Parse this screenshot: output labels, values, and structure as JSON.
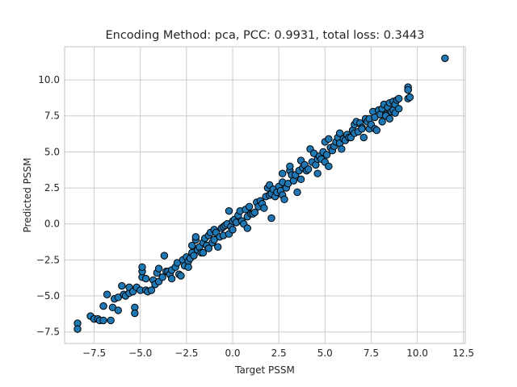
{
  "chart_data": {
    "type": "scatter",
    "title": "Encoding Method: pca, PCC: 0.9931, total loss: 0.3443",
    "xlabel": "Target PSSM",
    "ylabel": "Predicted PSSM",
    "xlim": [
      -9.1,
      12.6
    ],
    "ylim": [
      -8.3,
      12.3
    ],
    "xticks": [
      -7.5,
      -5.0,
      -2.5,
      0.0,
      2.5,
      5.0,
      7.5,
      10.0,
      12.5
    ],
    "xtick_labels": [
      "−7.5",
      "−5.0",
      "−2.5",
      "0.0",
      "2.5",
      "5.0",
      "7.5",
      "10.0",
      "12.5"
    ],
    "yticks": [
      -7.5,
      -5.0,
      -2.5,
      0.0,
      2.5,
      5.0,
      7.5,
      10.0
    ],
    "ytick_labels": [
      "−7.5",
      "−5.0",
      "−2.5",
      "0.0",
      "2.5",
      "5.0",
      "7.5",
      "10.0"
    ],
    "grid": true,
    "colors": {
      "marker_fill": "#1f77b4",
      "marker_edge": "#000000",
      "grid": "#cccccc"
    },
    "series": [
      {
        "points": [
          [
            -8.4,
            -6.9
          ],
          [
            -8.4,
            -7.3
          ],
          [
            -7.7,
            -6.4
          ],
          [
            -7.5,
            -6.6
          ],
          [
            -7.3,
            -6.6
          ],
          [
            -7.2,
            -6.7
          ],
          [
            -7.0,
            -6.7
          ],
          [
            -7.0,
            -5.7
          ],
          [
            -6.8,
            -4.9
          ],
          [
            -6.6,
            -6.7
          ],
          [
            -6.5,
            -5.8
          ],
          [
            -6.4,
            -5.2
          ],
          [
            -6.2,
            -5.1
          ],
          [
            -6.2,
            -6.0
          ],
          [
            -6.0,
            -4.3
          ],
          [
            -5.9,
            -4.9
          ],
          [
            -5.8,
            -5.0
          ],
          [
            -5.6,
            -4.8
          ],
          [
            -5.6,
            -4.4
          ],
          [
            -5.4,
            -4.7
          ],
          [
            -5.3,
            -5.8
          ],
          [
            -5.3,
            -6.2
          ],
          [
            -5.2,
            -4.4
          ],
          [
            -5.0,
            -4.6
          ],
          [
            -4.9,
            -3.7
          ],
          [
            -4.9,
            -3.3
          ],
          [
            -4.9,
            -3.0
          ],
          [
            -4.7,
            -4.6
          ],
          [
            -4.7,
            -3.8
          ],
          [
            -4.6,
            -4.7
          ],
          [
            -4.4,
            -4.6
          ],
          [
            -4.3,
            -3.9
          ],
          [
            -4.2,
            -4.2
          ],
          [
            -4.1,
            -3.4
          ],
          [
            -4.0,
            -3.1
          ],
          [
            -4.0,
            -4.0
          ],
          [
            -3.8,
            -3.7
          ],
          [
            -3.7,
            -2.2
          ],
          [
            -3.6,
            -3.3
          ],
          [
            -3.5,
            -3.3
          ],
          [
            -3.4,
            -3.5
          ],
          [
            -3.3,
            -3.2
          ],
          [
            -3.3,
            -3.8
          ],
          [
            -3.1,
            -3.0
          ],
          [
            -3.0,
            -2.7
          ],
          [
            -2.9,
            -3.5
          ],
          [
            -2.8,
            -3.6
          ],
          [
            -2.7,
            -2.5
          ],
          [
            -2.6,
            -2.9
          ],
          [
            -2.5,
            -2.3
          ],
          [
            -2.4,
            -2.6
          ],
          [
            -2.4,
            -3.0
          ],
          [
            -2.3,
            -2.4
          ],
          [
            -2.2,
            -2.0
          ],
          [
            -2.2,
            -1.5
          ],
          [
            -2.1,
            -2.2
          ],
          [
            -2.0,
            -1.1
          ],
          [
            -2.0,
            -0.9
          ],
          [
            -1.9,
            -1.8
          ],
          [
            -1.8,
            -1.6
          ],
          [
            -1.7,
            -2.0
          ],
          [
            -1.6,
            -1.3
          ],
          [
            -1.6,
            -2.0
          ],
          [
            -1.5,
            -1.0
          ],
          [
            -1.4,
            -1.5
          ],
          [
            -1.3,
            -0.8
          ],
          [
            -1.3,
            -1.7
          ],
          [
            -1.2,
            -0.6
          ],
          [
            -1.1,
            -1.3
          ],
          [
            -1.0,
            -1.1
          ],
          [
            -1.0,
            -0.4
          ],
          [
            -0.9,
            -0.6
          ],
          [
            -0.8,
            -1.6
          ],
          [
            -0.7,
            -0.9
          ],
          [
            -0.6,
            -0.3
          ],
          [
            -0.5,
            -0.2
          ],
          [
            -0.5,
            -0.8
          ],
          [
            -0.4,
            -0.1
          ],
          [
            -0.3,
            0.0
          ],
          [
            -0.2,
            -0.7
          ],
          [
            -0.2,
            0.9
          ],
          [
            -0.1,
            -0.2
          ],
          [
            0.0,
            -0.4
          ],
          [
            0.0,
            0.2
          ],
          [
            0.1,
            0.3
          ],
          [
            0.2,
            0.1
          ],
          [
            0.3,
            0.6
          ],
          [
            0.4,
            0.9
          ],
          [
            0.5,
            0.2
          ],
          [
            0.6,
            0.0
          ],
          [
            0.7,
            1.0
          ],
          [
            0.8,
            0.5
          ],
          [
            0.8,
            -0.3
          ],
          [
            0.9,
            1.2
          ],
          [
            1.0,
            0.7
          ],
          [
            1.1,
            0.7
          ],
          [
            1.2,
            0.8
          ],
          [
            1.3,
            1.5
          ],
          [
            1.4,
            1.2
          ],
          [
            1.5,
            1.6
          ],
          [
            1.6,
            1.4
          ],
          [
            1.7,
            1.1
          ],
          [
            1.8,
            1.9
          ],
          [
            1.9,
            2.5
          ],
          [
            2.0,
            2.0
          ],
          [
            2.0,
            2.7
          ],
          [
            2.1,
            2.1
          ],
          [
            2.1,
            0.4
          ],
          [
            2.2,
            2.4
          ],
          [
            2.3,
            1.9
          ],
          [
            2.4,
            2.2
          ],
          [
            2.5,
            2.6
          ],
          [
            2.6,
            2.3
          ],
          [
            2.7,
            2.0
          ],
          [
            2.7,
            2.9
          ],
          [
            2.7,
            3.5
          ],
          [
            2.8,
            1.7
          ],
          [
            2.9,
            2.5
          ],
          [
            3.0,
            2.8
          ],
          [
            3.1,
            3.7
          ],
          [
            3.1,
            4.0
          ],
          [
            3.2,
            3.4
          ],
          [
            3.3,
            3.0
          ],
          [
            3.4,
            3.4
          ],
          [
            3.5,
            2.2
          ],
          [
            3.6,
            3.7
          ],
          [
            3.7,
            4.4
          ],
          [
            3.7,
            3.1
          ],
          [
            3.8,
            3.9
          ],
          [
            3.9,
            4.1
          ],
          [
            4.0,
            3.7
          ],
          [
            4.1,
            3.8
          ],
          [
            4.2,
            5.2
          ],
          [
            4.3,
            4.3
          ],
          [
            4.4,
            4.9
          ],
          [
            4.5,
            4.1
          ],
          [
            4.6,
            4.5
          ],
          [
            4.6,
            3.5
          ],
          [
            4.7,
            4.7
          ],
          [
            4.8,
            4.5
          ],
          [
            4.9,
            5.0
          ],
          [
            5.0,
            4.3
          ],
          [
            5.0,
            5.7
          ],
          [
            5.1,
            4.8
          ],
          [
            5.2,
            4.0
          ],
          [
            5.2,
            5.9
          ],
          [
            5.3,
            5.3
          ],
          [
            5.4,
            5.1
          ],
          [
            5.5,
            5.4
          ],
          [
            5.6,
            5.7
          ],
          [
            5.7,
            6.0
          ],
          [
            5.8,
            5.6
          ],
          [
            5.8,
            6.3
          ],
          [
            5.9,
            5.2
          ],
          [
            6.0,
            5.9
          ],
          [
            6.1,
            5.8
          ],
          [
            6.2,
            6.2
          ],
          [
            6.3,
            6.0
          ],
          [
            6.4,
            6.0
          ],
          [
            6.5,
            6.5
          ],
          [
            6.6,
            6.9
          ],
          [
            6.6,
            6.3
          ],
          [
            6.7,
            7.1
          ],
          [
            6.8,
            6.4
          ],
          [
            6.9,
            7.0
          ],
          [
            7.0,
            6.7
          ],
          [
            7.0,
            6.6
          ],
          [
            7.1,
            6.0
          ],
          [
            7.2,
            7.3
          ],
          [
            7.3,
            7.1
          ],
          [
            7.4,
            7.3
          ],
          [
            7.4,
            6.6
          ],
          [
            7.5,
            6.9
          ],
          [
            7.6,
            7.8
          ],
          [
            7.7,
            7.4
          ],
          [
            7.7,
            6.6
          ],
          [
            7.8,
            6.5
          ],
          [
            7.9,
            7.9
          ],
          [
            8.0,
            7.6
          ],
          [
            8.1,
            7.1
          ],
          [
            8.1,
            8.0
          ],
          [
            8.2,
            8.3
          ],
          [
            8.3,
            7.6
          ],
          [
            8.3,
            7.5
          ],
          [
            8.4,
            8.1
          ],
          [
            8.5,
            8.4
          ],
          [
            8.5,
            7.3
          ],
          [
            8.6,
            7.8
          ],
          [
            8.7,
            7.9
          ],
          [
            8.7,
            8.5
          ],
          [
            8.8,
            8.3
          ],
          [
            8.8,
            7.7
          ],
          [
            8.9,
            8.6
          ],
          [
            9.0,
            8.7
          ],
          [
            9.0,
            8.0
          ],
          [
            9.5,
            9.3
          ],
          [
            9.5,
            9.5
          ],
          [
            9.5,
            8.7
          ],
          [
            9.6,
            8.8
          ],
          [
            9.5,
            9.3
          ],
          [
            11.5,
            11.5
          ]
        ]
      }
    ]
  }
}
